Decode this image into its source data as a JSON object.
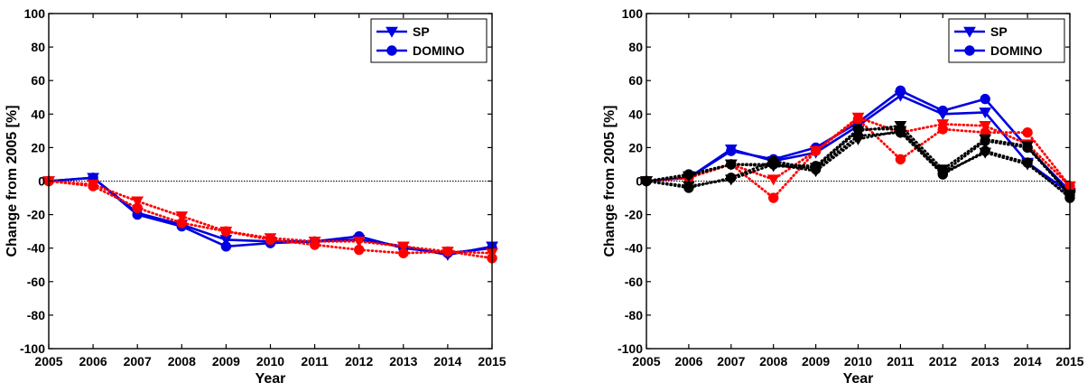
{
  "chart_data": [
    {
      "type": "line",
      "title": "",
      "xlabel": "Year",
      "ylabel": "Change from 2005 [%]",
      "x": [
        2005,
        2006,
        2007,
        2008,
        2009,
        2010,
        2011,
        2012,
        2013,
        2014,
        2015
      ],
      "xlim": [
        2005,
        2015
      ],
      "ylim": [
        -100,
        100
      ],
      "yticks": [
        -100,
        -80,
        -60,
        -40,
        -20,
        0,
        20,
        40,
        60,
        80,
        100
      ],
      "grid": false,
      "zero_line": true,
      "legend": {
        "position": "top-right",
        "entries": [
          "SP",
          "DOMINO"
        ]
      },
      "series": [
        {
          "name": "SP",
          "color": "#0000e0",
          "marker": "triangle-down",
          "style": "solid",
          "values": [
            0,
            2,
            -19,
            -26,
            -35,
            -36,
            -36,
            -35,
            -39,
            -44,
            -39
          ]
        },
        {
          "name": "DOMINO",
          "color": "#0000e0",
          "marker": "circle",
          "style": "solid",
          "values": [
            0,
            2,
            -20,
            -27,
            -39,
            -37,
            -36,
            -33,
            -40,
            -43,
            -40
          ]
        },
        {
          "color": "#ff0000",
          "marker": "triangle-down",
          "style": "dotted",
          "values": [
            0,
            -2,
            -12,
            -21,
            -30,
            -34,
            -36,
            -36,
            -39,
            -42,
            -43
          ]
        },
        {
          "color": "#ff0000",
          "marker": "circle",
          "style": "dotted",
          "values": [
            0,
            -3,
            -16,
            -25,
            -30,
            -35,
            -38,
            -41,
            -43,
            -42,
            -46
          ]
        }
      ]
    },
    {
      "type": "line",
      "title": "",
      "xlabel": "Year",
      "ylabel": "Change from 2005 [%]",
      "x": [
        2005,
        2006,
        2007,
        2008,
        2009,
        2010,
        2011,
        2012,
        2013,
        2014,
        2015
      ],
      "xlim": [
        2005,
        2015
      ],
      "ylim": [
        -100,
        100
      ],
      "yticks": [
        -100,
        -80,
        -60,
        -40,
        -20,
        0,
        20,
        40,
        60,
        80,
        100
      ],
      "grid": false,
      "zero_line": true,
      "legend": {
        "position": "top-right",
        "entries": [
          "SP",
          "DOMINO"
        ]
      },
      "series": [
        {
          "name": "SP",
          "color": "#0000e0",
          "marker": "triangle-down",
          "style": "solid",
          "values": [
            0,
            2,
            19,
            12,
            17,
            33,
            51,
            40,
            41,
            11,
            -7
          ]
        },
        {
          "name": "DOMINO",
          "color": "#0000e0",
          "marker": "circle",
          "style": "solid",
          "values": [
            0,
            2,
            18,
            13,
            20,
            35,
            54,
            42,
            49,
            20,
            -6
          ]
        },
        {
          "color": "#ff0000",
          "marker": "triangle-down",
          "style": "dotted",
          "values": [
            0,
            2,
            10,
            1,
            18,
            38,
            29,
            34,
            33,
            22,
            -3
          ]
        },
        {
          "color": "#ff0000",
          "marker": "circle",
          "style": "dotted",
          "values": [
            0,
            2,
            10,
            -10,
            18,
            37,
            13,
            31,
            29,
            29,
            -3
          ]
        },
        {
          "color": "#000000",
          "marker": "triangle-down",
          "style": "dotted",
          "values": [
            0,
            -3,
            1,
            10,
            6,
            25,
            30,
            5,
            17,
            10,
            -9
          ]
        },
        {
          "color": "#000000",
          "marker": "circle",
          "style": "dotted",
          "values": [
            0,
            4,
            10,
            10,
            9,
            31,
            31,
            5,
            24,
            20,
            -8
          ]
        },
        {
          "color": "#000000",
          "marker": "triangle-down",
          "style": "dotted",
          "values": [
            0,
            3,
            10,
            9,
            8,
            30,
            33,
            7,
            25,
            21,
            -8
          ]
        },
        {
          "color": "#000000",
          "marker": "circle",
          "style": "dotted",
          "values": [
            0,
            -4,
            2,
            12,
            7,
            27,
            29,
            4,
            18,
            11,
            -10
          ]
        }
      ]
    }
  ]
}
